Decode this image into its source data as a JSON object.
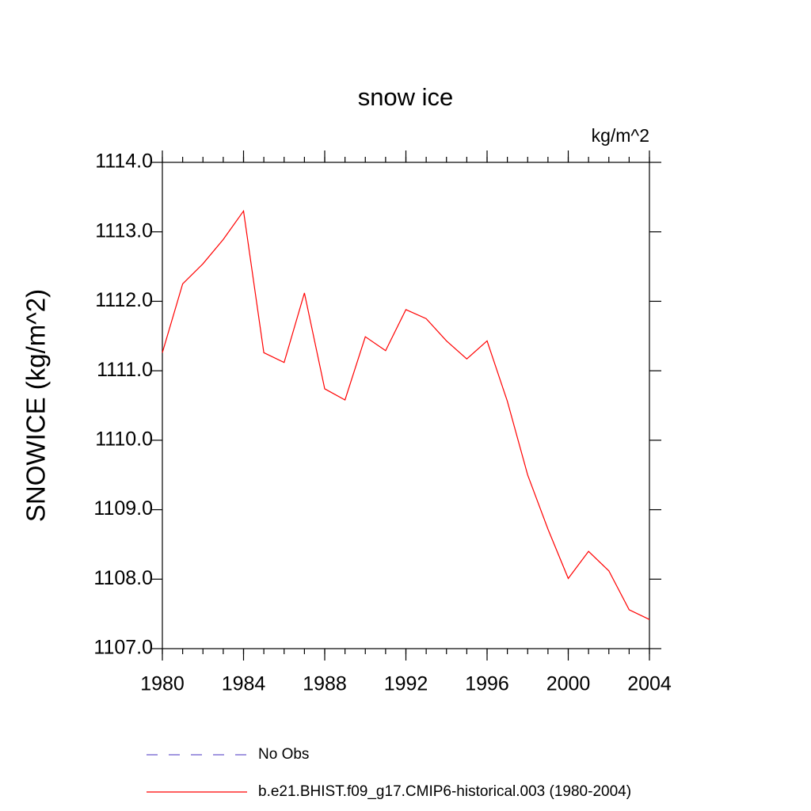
{
  "chart_data": {
    "type": "line",
    "title": "snow ice",
    "units": "kg/m^2",
    "y_label": "SNOWICE  (kg/m^2)",
    "x": [
      1980,
      1981,
      1982,
      1983,
      1984,
      1985,
      1986,
      1987,
      1988,
      1989,
      1990,
      1991,
      1992,
      1993,
      1994,
      1995,
      1996,
      1997,
      1998,
      1999,
      2000,
      2001,
      2002,
      2003,
      2004
    ],
    "series": [
      {
        "name": "No Obs",
        "color": "#6a5acd",
        "dashed": true,
        "values": [
          null,
          null,
          null,
          null,
          null,
          null,
          null,
          null,
          null,
          null,
          null,
          null,
          null,
          null,
          null,
          null,
          null,
          null,
          null,
          null,
          null,
          null,
          null,
          null,
          null
        ]
      },
      {
        "name": "b.e21.BHIST.f09_g17.CMIP6-historical.003 (1980-2004)",
        "color": "#ff0000",
        "dashed": false,
        "values": [
          1111.26,
          1112.25,
          1112.54,
          1112.89,
          1113.3,
          1111.26,
          1111.12,
          1112.12,
          1110.74,
          1110.58,
          1111.49,
          1111.29,
          1111.88,
          1111.75,
          1111.43,
          1111.17,
          1111.43,
          1110.56,
          1109.5,
          1108.72,
          1108.01,
          1108.4,
          1108.12,
          1107.56,
          1107.42
        ]
      }
    ],
    "xlim": [
      1980,
      2004
    ],
    "xticks": [
      1980,
      1984,
      1988,
      1992,
      1996,
      2000,
      2004
    ],
    "ylim": [
      1107,
      1114
    ],
    "yticks": [
      {
        "value": 1107,
        "label": "1107.0"
      },
      {
        "value": 1108,
        "label": "1108.0"
      },
      {
        "value": 1109,
        "label": "1109.0"
      },
      {
        "value": 1110,
        "label": "1110.0"
      },
      {
        "value": 1111,
        "label": "1111.0"
      },
      {
        "value": 1112,
        "label": "1112.0"
      },
      {
        "value": 1113,
        "label": "1113.0"
      },
      {
        "value": 1114,
        "label": "1114.0"
      }
    ]
  }
}
